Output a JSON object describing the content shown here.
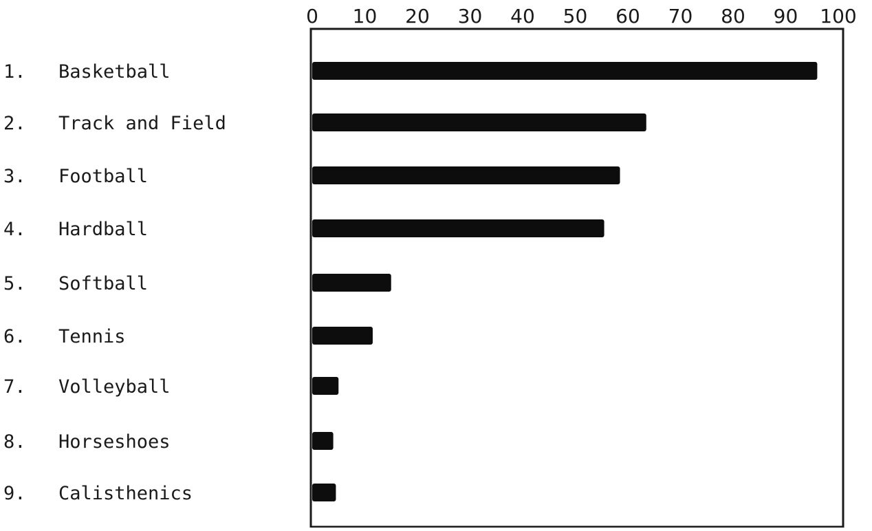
{
  "chart_data": {
    "type": "bar",
    "orientation": "horizontal",
    "title": "",
    "xlabel": "",
    "ylabel": "",
    "xlim": [
      0,
      100
    ],
    "ticks": [
      "0",
      "10",
      "20",
      "30",
      "40",
      "50",
      "60",
      "70",
      "80",
      "90",
      "100"
    ],
    "categories": [
      {
        "number": "1.",
        "label": "Basketball"
      },
      {
        "number": "2.",
        "label": "Track and Field"
      },
      {
        "number": "3.",
        "label": "Football"
      },
      {
        "number": "4.",
        "label": "Hardball"
      },
      {
        "number": "5.",
        "label": "Softball"
      },
      {
        "number": "6.",
        "label": "Tennis"
      },
      {
        "number": "7.",
        "label": "Volleyball"
      },
      {
        "number": "8.",
        "label": "Horseshoes"
      },
      {
        "number": "9.",
        "label": "Calisthenics"
      }
    ],
    "values": [
      96,
      63.5,
      58.5,
      55.5,
      15,
      11.5,
      5,
      4,
      4.5
    ],
    "bar_color": "#0d0d0d",
    "grid": false,
    "legend": "none"
  }
}
